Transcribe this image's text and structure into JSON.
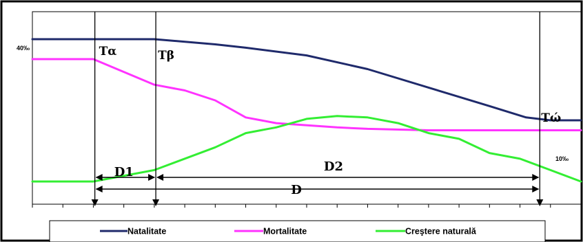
{
  "chart_data": {
    "type": "line",
    "level_labels": {
      "start": "40‰",
      "end": "10‰"
    },
    "phase_labels": [
      "Tα",
      "Tβ",
      "Tώ"
    ],
    "intervals": [
      {
        "label": "D1",
        "from": 1,
        "to": 2
      },
      {
        "label": "D2",
        "from": 2,
        "to": 3
      },
      {
        "label": "D",
        "from": 1,
        "to": 3
      }
    ],
    "x": [
      0,
      1,
      2,
      3,
      4,
      5,
      6,
      7,
      8,
      9,
      10,
      11,
      12,
      13,
      14,
      15,
      16,
      17,
      18
    ],
    "phase_x": [
      2.05,
      4.05,
      16.65
    ],
    "ylim": [
      0,
      50
    ],
    "series": [
      {
        "name": "Natalitate",
        "color": "#1f2a6b",
        "points": [
          [
            0,
            50
          ],
          [
            4,
            50
          ],
          [
            6,
            48.2
          ],
          [
            7,
            47
          ],
          [
            9,
            44.3
          ],
          [
            11,
            39.5
          ],
          [
            13,
            33
          ],
          [
            15,
            26.5
          ],
          [
            16.2,
            22.5
          ],
          [
            17,
            21.5
          ],
          [
            18,
            21.5
          ]
        ]
      },
      {
        "name": "Mortalitate",
        "color": "#ff33ff",
        "points": [
          [
            0,
            43
          ],
          [
            2,
            43
          ],
          [
            4,
            34
          ],
          [
            5,
            32
          ],
          [
            6,
            28.5
          ],
          [
            7,
            22.5
          ],
          [
            8,
            20.5
          ],
          [
            10,
            19
          ],
          [
            11,
            18.5
          ],
          [
            13,
            18
          ],
          [
            15,
            18
          ],
          [
            18,
            18
          ]
        ]
      },
      {
        "name": "Creştere naturală",
        "color": "#33ee33",
        "points": [
          [
            0,
            0
          ],
          [
            2,
            0
          ],
          [
            4,
            4
          ],
          [
            6,
            12
          ],
          [
            7,
            17
          ],
          [
            8,
            19
          ],
          [
            9,
            22
          ],
          [
            10,
            23
          ],
          [
            11,
            22.5
          ],
          [
            12,
            20.5
          ],
          [
            13,
            17
          ],
          [
            14,
            15
          ],
          [
            15,
            10
          ],
          [
            16,
            8
          ],
          [
            17,
            4
          ],
          [
            18,
            0
          ]
        ]
      }
    ],
    "legend_position": "bottom"
  }
}
